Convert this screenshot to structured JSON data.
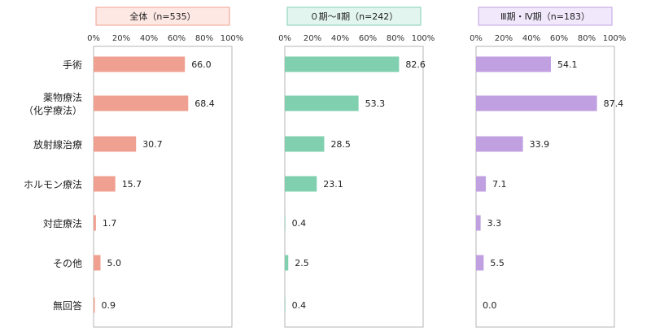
{
  "chart_data": {
    "type": "bar",
    "orientation": "horizontal",
    "categories": [
      [
        "手術"
      ],
      [
        "薬物療法",
        "（化学療法）"
      ],
      [
        "放射線治療"
      ],
      [
        "ホルモン療法"
      ],
      [
        "対症療法"
      ],
      [
        "その他"
      ],
      [
        "無回答"
      ]
    ],
    "xlim": [
      0,
      100
    ],
    "ticks": [
      "0%",
      "20%",
      "40%",
      "60%",
      "80%",
      "100%"
    ],
    "grid": false,
    "panels": [
      {
        "title": "全体（n=535）",
        "color": "#f0a090",
        "header_bg": "#fde8e4",
        "header_border": "#f0a090",
        "values": [
          66.0,
          68.4,
          30.7,
          15.7,
          1.7,
          5.0,
          0.9
        ],
        "labels": [
          "66.0",
          "68.4",
          "30.7",
          "15.7",
          "1.7",
          "5.0",
          "0.9"
        ]
      },
      {
        "title": "０期～Ⅱ期（n=242）",
        "color": "#80d0b0",
        "header_bg": "#e2f5ee",
        "header_border": "#80d0b0",
        "values": [
          82.6,
          53.3,
          28.5,
          23.1,
          0.4,
          2.5,
          0.4
        ],
        "labels": [
          "82.6",
          "53.3",
          "28.5",
          "23.1",
          "0.4",
          "2.5",
          "0.4"
        ]
      },
      {
        "title": "Ⅲ期・Ⅳ期（n=183）",
        "color": "#c0a0e0",
        "header_bg": "#f1e8fb",
        "header_border": "#c0a0e0",
        "values": [
          54.1,
          87.4,
          33.9,
          7.1,
          3.3,
          5.5,
          0.0
        ],
        "labels": [
          "54.1",
          "87.4",
          "33.9",
          "7.1",
          "3.3",
          "5.5",
          "0.0"
        ]
      }
    ]
  }
}
